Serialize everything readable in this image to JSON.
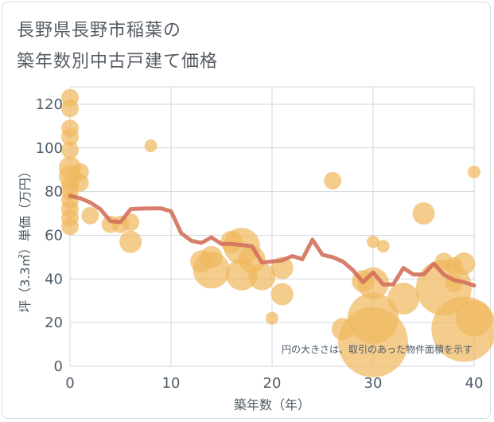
{
  "title_line1": "長野県長野市稲葉の",
  "title_line2": "築年数別中古戸建て価格",
  "chart_data": {
    "type": "scatter",
    "xlabel": "築年数（年）",
    "ylabel": "坪（3.3㎡）単価（万円）",
    "xlim": [
      0,
      40
    ],
    "ylim": [
      0,
      128
    ],
    "xticks": [
      0,
      10,
      20,
      30,
      40
    ],
    "yticks": [
      0,
      20,
      40,
      60,
      80,
      100,
      120
    ],
    "annotation": "円の大きさは、取引のあった物件面積を示す",
    "colors": {
      "bubble": "#f0b860",
      "line": "#d4705c",
      "grid": "#cfd7e0"
    },
    "bubbles": [
      {
        "x": 0,
        "y": 123,
        "size": 3
      },
      {
        "x": 0,
        "y": 118,
        "size": 3
      },
      {
        "x": 0,
        "y": 109,
        "size": 3
      },
      {
        "x": 0,
        "y": 105,
        "size": 3
      },
      {
        "x": 0,
        "y": 99,
        "size": 3
      },
      {
        "x": 0,
        "y": 91,
        "size": 4
      },
      {
        "x": 0,
        "y": 87,
        "size": 4
      },
      {
        "x": 0,
        "y": 83,
        "size": 3
      },
      {
        "x": 0,
        "y": 80,
        "size": 3
      },
      {
        "x": 0,
        "y": 76,
        "size": 3
      },
      {
        "x": 0,
        "y": 72,
        "size": 3
      },
      {
        "x": 0,
        "y": 68,
        "size": 3
      },
      {
        "x": 0,
        "y": 64,
        "size": 3
      },
      {
        "x": 1,
        "y": 89,
        "size": 3
      },
      {
        "x": 1,
        "y": 84,
        "size": 3
      },
      {
        "x": 2,
        "y": 69,
        "size": 3
      },
      {
        "x": 4,
        "y": 65,
        "size": 3
      },
      {
        "x": 5,
        "y": 65,
        "size": 3
      },
      {
        "x": 6,
        "y": 66,
        "size": 3
      },
      {
        "x": 6,
        "y": 57,
        "size": 4
      },
      {
        "x": 8,
        "y": 101,
        "size": 2
      },
      {
        "x": 13,
        "y": 48,
        "size": 4
      },
      {
        "x": 14,
        "y": 50,
        "size": 4
      },
      {
        "x": 14,
        "y": 44,
        "size": 7
      },
      {
        "x": 16,
        "y": 57,
        "size": 4
      },
      {
        "x": 17,
        "y": 55,
        "size": 7
      },
      {
        "x": 17,
        "y": 42,
        "size": 6
      },
      {
        "x": 18,
        "y": 49,
        "size": 5
      },
      {
        "x": 19,
        "y": 41,
        "size": 5
      },
      {
        "x": 20,
        "y": 22,
        "size": 2
      },
      {
        "x": 21,
        "y": 45,
        "size": 4
      },
      {
        "x": 21,
        "y": 33,
        "size": 4
      },
      {
        "x": 26,
        "y": 85,
        "size": 3
      },
      {
        "x": 27,
        "y": 17,
        "size": 4
      },
      {
        "x": 29,
        "y": 39,
        "size": 4
      },
      {
        "x": 30,
        "y": 57,
        "size": 2
      },
      {
        "x": 30,
        "y": 38,
        "size": 6
      },
      {
        "x": 30,
        "y": 22,
        "size": 10
      },
      {
        "x": 30,
        "y": 11,
        "size": 14
      },
      {
        "x": 31,
        "y": 55,
        "size": 2
      },
      {
        "x": 33,
        "y": 31,
        "size": 6
      },
      {
        "x": 35,
        "y": 70,
        "size": 4
      },
      {
        "x": 37,
        "y": 48,
        "size": 3
      },
      {
        "x": 37,
        "y": 36,
        "size": 11
      },
      {
        "x": 38,
        "y": 46,
        "size": 3
      },
      {
        "x": 38,
        "y": 38,
        "size": 3
      },
      {
        "x": 39,
        "y": 47,
        "size": 4
      },
      {
        "x": 39,
        "y": 17,
        "size": 13
      },
      {
        "x": 40,
        "y": 89,
        "size": 2
      },
      {
        "x": 40,
        "y": 22,
        "size": 7
      }
    ],
    "trend": {
      "x": [
        0,
        1,
        2,
        3,
        4,
        5,
        6,
        7,
        8,
        9,
        10,
        11,
        12,
        13,
        14,
        15,
        16,
        17,
        18,
        19,
        20,
        21,
        22,
        23,
        24,
        25,
        26,
        27,
        28,
        29,
        30,
        31,
        32,
        33,
        34,
        35,
        36,
        37,
        38,
        39,
        40
      ],
      "y": [
        78,
        77,
        75,
        72,
        66.5,
        66,
        72,
        72.2,
        72.3,
        72.3,
        71,
        61,
        57.5,
        56.5,
        59,
        56,
        56,
        55.5,
        55,
        47.5,
        48,
        48.5,
        50.5,
        49,
        58,
        51,
        50,
        48,
        44,
        38.5,
        43,
        37.5,
        37.5,
        45,
        42,
        42,
        47,
        42,
        39.5,
        38.5,
        37
      ]
    }
  }
}
